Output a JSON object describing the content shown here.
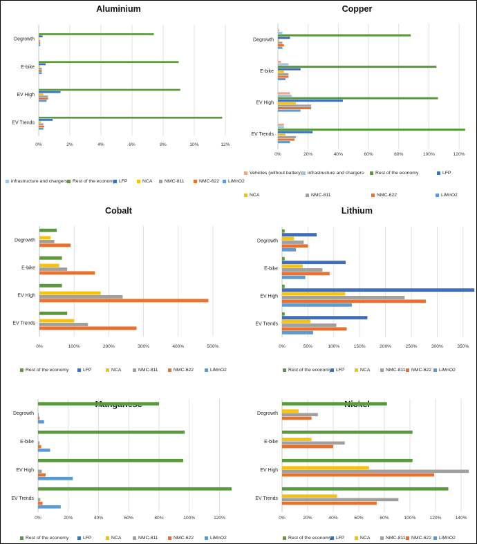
{
  "series_colors": {
    "Vehicles (without battery)": "#f4a582",
    "infrastructure and chargers": "#9dc3e6",
    "Rest of the economy": "#5b9a3c",
    "LFP": "#3a6fc4",
    "NCA": "#f5c211",
    "NMC-811": "#a0a0a0",
    "NMC-622": "#e8712d",
    "LiMnO2": "#5b9bd5"
  },
  "chart_data": [
    {
      "type": "bar",
      "title": "Aluminium",
      "categories": [
        "Degrowth",
        "E-bike",
        "EV High",
        "EV Trends"
      ],
      "ticks": [
        "0%",
        "2%",
        "4%",
        "6%",
        "8%",
        "10%",
        "12%"
      ],
      "xlim": [
        0,
        12
      ],
      "grid": true,
      "legend_placement": "bottom",
      "series": [
        {
          "name": "infrastructure and chargers",
          "values": [
            0,
            0,
            0,
            0
          ]
        },
        {
          "name": "Rest of the economy",
          "values": [
            7.4,
            9.0,
            9.1,
            11.8
          ]
        },
        {
          "name": "LFP",
          "values": [
            0.25,
            0.45,
            1.4,
            0.9
          ]
        },
        {
          "name": "NCA",
          "values": [
            0.05,
            0.1,
            0.3,
            0.15
          ]
        },
        {
          "name": "NMC-811",
          "values": [
            0.1,
            0.2,
            0.6,
            0.3
          ]
        },
        {
          "name": "NMC-622",
          "values": [
            0.1,
            0.2,
            0.6,
            0.35
          ]
        },
        {
          "name": "LiMnO2",
          "values": [
            0.1,
            0.2,
            0.5,
            0.3
          ]
        }
      ]
    },
    {
      "type": "bar",
      "title": "Copper",
      "categories": [
        "Degrowth",
        "E-bike",
        "EV High",
        "EV Trends"
      ],
      "ticks": [
        "0%",
        "20%",
        "40%",
        "60%",
        "80%",
        "100%",
        "120%"
      ],
      "xlim": [
        0,
        125
      ],
      "grid": true,
      "legend_placement": "bottom",
      "series": [
        {
          "name": "Vehicles (without battery)",
          "values": [
            1,
            2,
            8,
            4
          ]
        },
        {
          "name": "infrastructure and chargers",
          "values": [
            3,
            7,
            9,
            4
          ]
        },
        {
          "name": "Rest of the economy",
          "values": [
            88,
            105,
            106,
            124
          ]
        },
        {
          "name": "LFP",
          "values": [
            8,
            15,
            43,
            23
          ]
        },
        {
          "name": "NCA",
          "values": [
            1,
            4,
            12,
            5
          ]
        },
        {
          "name": "NMC-811",
          "values": [
            3,
            7,
            22,
            12
          ]
        },
        {
          "name": "NMC-622",
          "values": [
            4,
            7,
            22,
            11
          ]
        },
        {
          "name": "LiMnO2",
          "values": [
            3,
            5,
            15,
            8
          ]
        }
      ]
    },
    {
      "type": "bar",
      "title": "Cobalt",
      "categories": [
        "Degrowth",
        "E-bike",
        "EV High",
        "EV Trends"
      ],
      "ticks": [
        "0%",
        "100%",
        "200%",
        "300%",
        "400%",
        "500%"
      ],
      "xlim": [
        0,
        530
      ],
      "grid": true,
      "legend_placement": "bottom",
      "series": [
        {
          "name": "Rest of the economy",
          "values": [
            50,
            65,
            65,
            80
          ]
        },
        {
          "name": "LFP",
          "values": [
            0,
            0,
            0,
            0
          ]
        },
        {
          "name": "NCA",
          "values": [
            32,
            57,
            177,
            100
          ]
        },
        {
          "name": "NMC-811",
          "values": [
            43,
            80,
            240,
            140
          ]
        },
        {
          "name": "NMC-622",
          "values": [
            90,
            160,
            487,
            280
          ]
        },
        {
          "name": "LiMnO2",
          "values": [
            0,
            0,
            0,
            0
          ]
        }
      ]
    },
    {
      "type": "bar",
      "title": "Lithium",
      "categories": [
        "Degrowth",
        "E-bike",
        "EV High",
        "EV Trends"
      ],
      "ticks": [
        "0%",
        "50%",
        "100%",
        "150%",
        "200%",
        "250%",
        "300%",
        "350%"
      ],
      "xlim": [
        0,
        365
      ],
      "grid": true,
      "legend_placement": "bottom",
      "series": [
        {
          "name": "Rest of the economy",
          "values": [
            5,
            5,
            5,
            5
          ]
        },
        {
          "name": "LFP",
          "values": [
            67,
            123,
            372,
            165
          ]
        },
        {
          "name": "NCA",
          "values": [
            23,
            40,
            122,
            55
          ]
        },
        {
          "name": "NMC-811",
          "values": [
            42,
            78,
            237,
            105
          ]
        },
        {
          "name": "NMC-622",
          "values": [
            50,
            92,
            278,
            125
          ]
        },
        {
          "name": "LiMnO2",
          "values": [
            27,
            45,
            135,
            60
          ]
        }
      ]
    },
    {
      "type": "bar",
      "title": "Manganese",
      "categories": [
        "Degrowth",
        "E-bike",
        "EV High",
        "EV Trends"
      ],
      "ticks": [
        "0%",
        "20%",
        "40%",
        "60%",
        "80%",
        "100%",
        "120%"
      ],
      "xlim": [
        0,
        128
      ],
      "grid": true,
      "legend_placement": "bottom",
      "series": [
        {
          "name": "Rest of the economy",
          "values": [
            80,
            97,
            96,
            128
          ]
        },
        {
          "name": "LFP",
          "values": [
            0,
            0,
            0,
            0
          ]
        },
        {
          "name": "NCA",
          "values": [
            0,
            0,
            0,
            0
          ]
        },
        {
          "name": "NMC-811",
          "values": [
            0.5,
            1,
            2.5,
            1.5
          ]
        },
        {
          "name": "NMC-622",
          "values": [
            1,
            2,
            5,
            3
          ]
        },
        {
          "name": "LiMnO2",
          "values": [
            4,
            8,
            23,
            15
          ]
        }
      ]
    },
    {
      "type": "bar",
      "title": "Nickel",
      "categories": [
        "Degrowth",
        "E-bike",
        "EV High",
        "EV Trends"
      ],
      "ticks": [
        "0%",
        "20%",
        "40%",
        "60%",
        "80%",
        "100%",
        "120%",
        "140%"
      ],
      "xlim": [
        0,
        147
      ],
      "grid": true,
      "legend_placement": "bottom",
      "series": [
        {
          "name": "Rest of the economy",
          "values": [
            82,
            102,
            102,
            130
          ]
        },
        {
          "name": "LFP",
          "values": [
            0,
            0,
            0,
            0
          ]
        },
        {
          "name": "NCA",
          "values": [
            13,
            23,
            68,
            43
          ]
        },
        {
          "name": "NMC-811",
          "values": [
            28,
            49,
            146,
            91
          ]
        },
        {
          "name": "NMC-622",
          "values": [
            23,
            40,
            119,
            74
          ]
        },
        {
          "name": "LiMnO2",
          "values": [
            0,
            0,
            0,
            0
          ]
        }
      ]
    }
  ]
}
